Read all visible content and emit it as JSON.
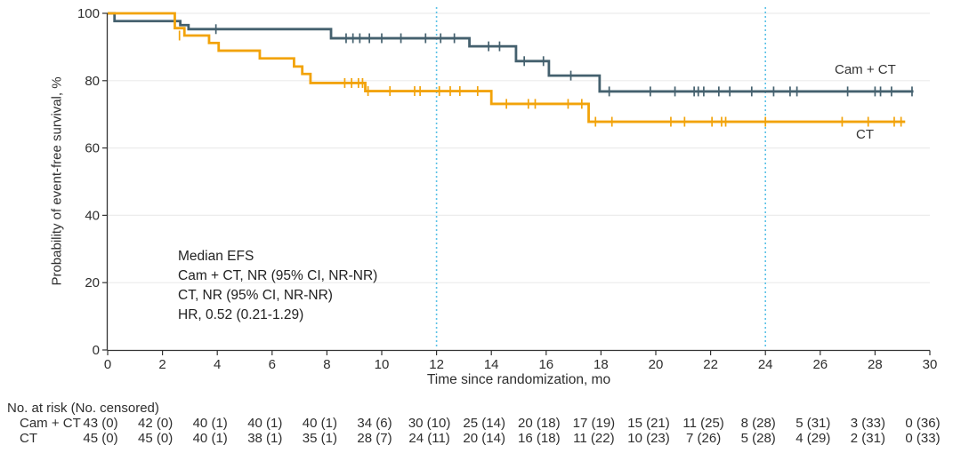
{
  "chart_data": {
    "type": "line",
    "subtype": "kaplan-meier-step-curves",
    "title": "",
    "xlabel": "Time since randomization, mo",
    "ylabel": "Probability of event-free survival, %",
    "xlim": [
      0,
      30
    ],
    "ylim": [
      0,
      100
    ],
    "xticks": [
      0,
      2,
      4,
      6,
      8,
      10,
      12,
      14,
      16,
      18,
      20,
      22,
      24,
      26,
      28,
      30
    ],
    "yticks": [
      0,
      20,
      40,
      60,
      80,
      100
    ],
    "grid": "horizontal-light",
    "reference_lines_x": [
      12,
      24
    ],
    "colors": {
      "reference_line": "#5BC2E7",
      "grid": "#ECECEC",
      "axis": "#333333",
      "text": "#2E2E2E"
    },
    "annotation": {
      "lines": [
        "Median EFS",
        "Cam + CT, NR (95% CI, NR-NR)",
        "CT, NR (95% CI, NR-NR)",
        "HR, 0.52 (0.21-1.29)"
      ]
    },
    "series": [
      {
        "name": "Cam + CT",
        "color": "#44606E",
        "steps": [
          [
            0,
            100
          ],
          [
            0.25,
            100
          ],
          [
            0.25,
            97.7
          ],
          [
            2.65,
            97.7
          ],
          [
            2.65,
            96.5
          ],
          [
            2.95,
            96.5
          ],
          [
            2.95,
            95.3
          ],
          [
            8.15,
            95.3
          ],
          [
            8.15,
            92.6
          ],
          [
            13.2,
            92.6
          ],
          [
            13.2,
            90.2
          ],
          [
            14.9,
            90.2
          ],
          [
            14.9,
            85.8
          ],
          [
            16.1,
            85.8
          ],
          [
            16.1,
            81.5
          ],
          [
            17.95,
            81.5
          ],
          [
            17.95,
            76.8
          ],
          [
            29.4,
            76.8
          ]
        ],
        "censors": [
          [
            3.95,
            95.3
          ],
          [
            8.7,
            92.6
          ],
          [
            8.95,
            92.6
          ],
          [
            9.2,
            92.6
          ],
          [
            9.55,
            92.6
          ],
          [
            10.0,
            92.6
          ],
          [
            10.7,
            92.6
          ],
          [
            11.6,
            92.6
          ],
          [
            12.15,
            92.6
          ],
          [
            12.65,
            92.6
          ],
          [
            13.9,
            90.2
          ],
          [
            14.3,
            90.2
          ],
          [
            15.2,
            85.8
          ],
          [
            15.9,
            85.8
          ],
          [
            16.9,
            81.5
          ],
          [
            18.3,
            76.8
          ],
          [
            19.8,
            76.8
          ],
          [
            20.7,
            76.8
          ],
          [
            21.4,
            76.8
          ],
          [
            21.55,
            76.8
          ],
          [
            21.75,
            76.8
          ],
          [
            22.3,
            76.8
          ],
          [
            22.7,
            76.8
          ],
          [
            23.5,
            76.8
          ],
          [
            24.3,
            76.8
          ],
          [
            24.9,
            76.8
          ],
          [
            25.15,
            76.8
          ],
          [
            27.0,
            76.8
          ],
          [
            28.0,
            76.8
          ],
          [
            28.2,
            76.8
          ],
          [
            28.6,
            76.8
          ],
          [
            29.35,
            76.8
          ]
        ]
      },
      {
        "name": "CT",
        "color": "#F2A30A",
        "steps": [
          [
            0,
            100
          ],
          [
            2.45,
            100
          ],
          [
            2.45,
            95.6
          ],
          [
            2.8,
            95.6
          ],
          [
            2.8,
            93.4
          ],
          [
            3.7,
            93.4
          ],
          [
            3.7,
            91.2
          ],
          [
            4.05,
            91.2
          ],
          [
            4.05,
            88.9
          ],
          [
            5.55,
            88.9
          ],
          [
            5.55,
            86.6
          ],
          [
            6.8,
            86.6
          ],
          [
            6.8,
            84.2
          ],
          [
            7.1,
            84.2
          ],
          [
            7.1,
            82.0
          ],
          [
            7.4,
            82.0
          ],
          [
            7.4,
            79.3
          ],
          [
            9.4,
            79.3
          ],
          [
            9.4,
            76.9
          ],
          [
            14.0,
            76.9
          ],
          [
            14.0,
            73.1
          ],
          [
            17.55,
            73.1
          ],
          [
            17.55,
            67.8
          ],
          [
            29.1,
            67.8
          ]
        ],
        "censors": [
          [
            2.62,
            93.4
          ],
          [
            8.65,
            79.3
          ],
          [
            8.9,
            79.3
          ],
          [
            9.15,
            79.3
          ],
          [
            9.3,
            79.3
          ],
          [
            9.5,
            76.9
          ],
          [
            10.3,
            76.9
          ],
          [
            11.2,
            76.9
          ],
          [
            11.4,
            76.9
          ],
          [
            12.1,
            76.9
          ],
          [
            12.5,
            76.9
          ],
          [
            12.85,
            76.9
          ],
          [
            13.5,
            76.9
          ],
          [
            14.55,
            73.1
          ],
          [
            15.35,
            73.1
          ],
          [
            15.6,
            73.1
          ],
          [
            16.8,
            73.1
          ],
          [
            17.3,
            73.1
          ],
          [
            17.8,
            67.8
          ],
          [
            18.4,
            67.8
          ],
          [
            20.55,
            67.8
          ],
          [
            21.05,
            67.8
          ],
          [
            22.05,
            67.8
          ],
          [
            22.4,
            67.8
          ],
          [
            22.55,
            67.8
          ],
          [
            24.0,
            67.8
          ],
          [
            26.8,
            67.8
          ],
          [
            27.75,
            67.8
          ],
          [
            28.7,
            67.8
          ],
          [
            28.95,
            67.8
          ]
        ]
      }
    ]
  },
  "risk_table": {
    "header": "No. at risk (No. censored)",
    "timepoints": [
      0,
      2,
      4,
      6,
      8,
      10,
      12,
      14,
      16,
      18,
      20,
      22,
      24,
      26,
      28,
      30
    ],
    "rows": [
      {
        "label": "Cam + CT",
        "counts": [
          "43 (0)",
          "42 (0)",
          "40 (1)",
          "40 (1)",
          "40 (1)",
          "34 (6)",
          "30 (10)",
          "25 (14)",
          "20 (18)",
          "17 (19)",
          "15 (21)",
          "11 (25)",
          "8 (28)",
          "5 (31)",
          "3 (33)",
          "0 (36)"
        ]
      },
      {
        "label": "CT",
        "counts": [
          "45 (0)",
          "45 (0)",
          "40 (1)",
          "38 (1)",
          "35 (1)",
          "28 (7)",
          "24 (11)",
          "20 (14)",
          "16 (18)",
          "11 (22)",
          "10 (23)",
          "7 (26)",
          "5 (28)",
          "4 (29)",
          "2 (31)",
          "0 (33)"
        ]
      }
    ]
  }
}
